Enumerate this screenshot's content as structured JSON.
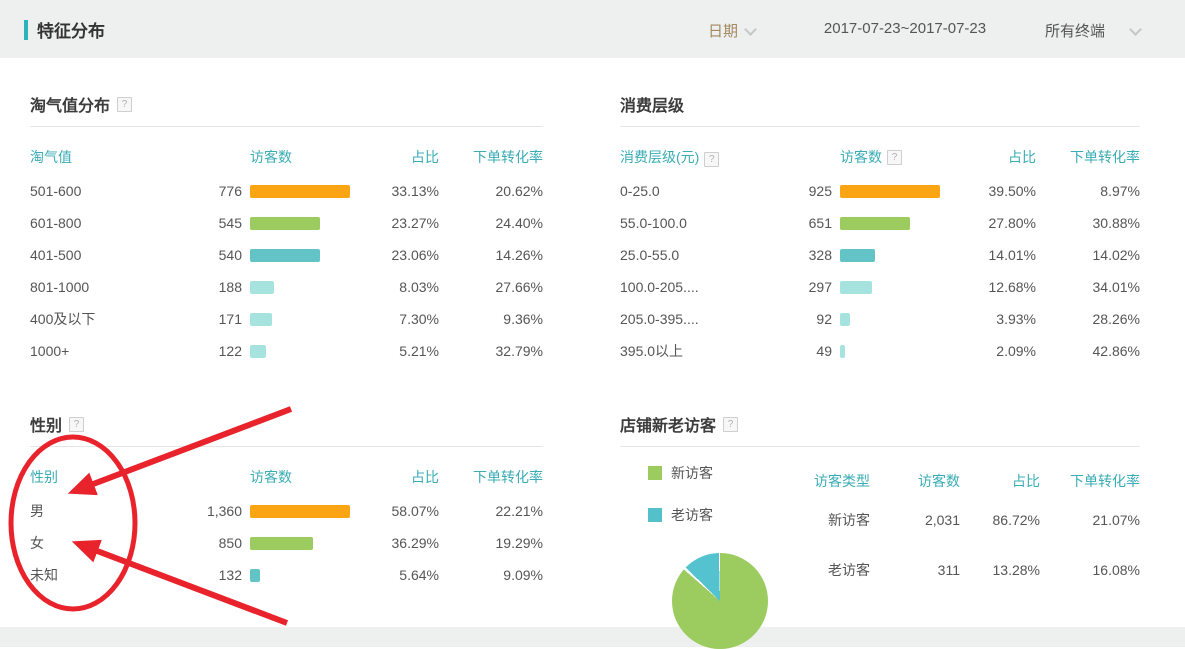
{
  "header": {
    "title": "特征分布",
    "date_filter_label": "日期",
    "date_range": "2017-07-23~2017-07-23",
    "terminal_filter_label": "所有终端"
  },
  "help_icon": "?",
  "colors": {
    "accent_teal": "#2db4ba",
    "header_teal": "#3aacb4",
    "bar_rank": [
      "#fba414",
      "#9ccb5f",
      "#63c4c7",
      "#a7e3de"
    ],
    "annotation_red": "#e8232c",
    "topbar_gray": "#eeefef"
  },
  "panels": {
    "taoqi": {
      "title": "淘气值分布",
      "columns": [
        "淘气值",
        "访客数",
        "占比",
        "下单转化率"
      ],
      "rows": [
        {
          "label": "501-600",
          "visitors": 776,
          "visitors_text": "776",
          "share": "33.13%",
          "conversion": "20.62%"
        },
        {
          "label": "601-800",
          "visitors": 545,
          "visitors_text": "545",
          "share": "23.27%",
          "conversion": "24.40%"
        },
        {
          "label": "401-500",
          "visitors": 540,
          "visitors_text": "540",
          "share": "23.06%",
          "conversion": "14.26%"
        },
        {
          "label": "801-1000",
          "visitors": 188,
          "visitors_text": "188",
          "share": "8.03%",
          "conversion": "27.66%"
        },
        {
          "label": "400及以下",
          "visitors": 171,
          "visitors_text": "171",
          "share": "7.30%",
          "conversion": "9.36%"
        },
        {
          "label": "1000+",
          "visitors": 122,
          "visitors_text": "122",
          "share": "5.21%",
          "conversion": "32.79%"
        }
      ]
    },
    "consume": {
      "title": "消费层级",
      "columns": [
        "消费层级(元)",
        "访客数",
        "占比",
        "下单转化率"
      ],
      "rows": [
        {
          "label": "0-25.0",
          "visitors": 925,
          "visitors_text": "925",
          "share": "39.50%",
          "conversion": "8.97%"
        },
        {
          "label": "55.0-100.0",
          "visitors": 651,
          "visitors_text": "651",
          "share": "27.80%",
          "conversion": "30.88%"
        },
        {
          "label": "25.0-55.0",
          "visitors": 328,
          "visitors_text": "328",
          "share": "14.01%",
          "conversion": "14.02%"
        },
        {
          "label": "100.0-205....",
          "visitors": 297,
          "visitors_text": "297",
          "share": "12.68%",
          "conversion": "34.01%"
        },
        {
          "label": "205.0-395....",
          "visitors": 92,
          "visitors_text": "92",
          "share": "3.93%",
          "conversion": "28.26%"
        },
        {
          "label": "395.0以上",
          "visitors": 49,
          "visitors_text": "49",
          "share": "2.09%",
          "conversion": "42.86%"
        }
      ]
    },
    "gender": {
      "title": "性别",
      "columns": [
        "性别",
        "访客数",
        "占比",
        "下单转化率"
      ],
      "rows": [
        {
          "label": "男",
          "visitors": 1360,
          "visitors_text": "1,360",
          "share": "58.07%",
          "conversion": "22.21%"
        },
        {
          "label": "女",
          "visitors": 850,
          "visitors_text": "850",
          "share": "36.29%",
          "conversion": "19.29%"
        },
        {
          "label": "未知",
          "visitors": 132,
          "visitors_text": "132",
          "share": "5.64%",
          "conversion": "9.09%"
        }
      ]
    },
    "visitors": {
      "title": "店铺新老访客",
      "legend": [
        {
          "label": "新访客",
          "color": "#9ccb5f"
        },
        {
          "label": "老访客",
          "color": "#54c0c9"
        }
      ],
      "columns": [
        "访客类型",
        "访客数",
        "占比",
        "下单转化率"
      ],
      "rows": [
        {
          "label": "新访客",
          "visitors_text": "2,031",
          "share": "86.72%",
          "conversion": "21.07%"
        },
        {
          "label": "老访客",
          "visitors_text": "311",
          "share": "13.28%",
          "conversion": "16.08%"
        }
      ]
    }
  },
  "chart_data": {
    "type": "pie",
    "title": "店铺新老访客",
    "categories": [
      "新访客",
      "老访客"
    ],
    "values": [
      86.72,
      13.28
    ],
    "colors": [
      "#9ccb5f",
      "#54c3cf"
    ],
    "legend_position": "left"
  }
}
